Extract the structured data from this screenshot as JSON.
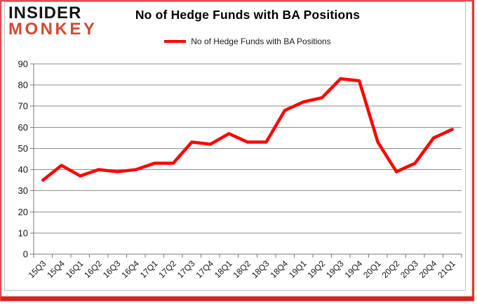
{
  "logo": {
    "line1": "INSIDER",
    "line2": "MONKEY"
  },
  "header": {
    "title": "No of Hedge Funds with BA Positions"
  },
  "legend": {
    "label": "No of Hedge Funds with BA Positions"
  },
  "chart_data": {
    "type": "line",
    "title": "No of Hedge Funds with BA Positions",
    "categories": [
      "15Q3",
      "15Q4",
      "16Q1",
      "16Q2",
      "16Q3",
      "16Q4",
      "17Q1",
      "17Q2",
      "17Q3",
      "17Q4",
      "18Q1",
      "18Q2",
      "18Q3",
      "18Q4",
      "19Q1",
      "19Q2",
      "19Q3",
      "19Q4",
      "20Q1",
      "20Q2",
      "20Q3",
      "20Q4",
      "21Q1"
    ],
    "series": [
      {
        "name": "No of Hedge Funds with BA Positions",
        "color": "#ff0000",
        "values": [
          35,
          42,
          37,
          40,
          39,
          40,
          43,
          43,
          53,
          52,
          57,
          53,
          53,
          68,
          72,
          74,
          83,
          82,
          53,
          39,
          43,
          55,
          59
        ]
      }
    ],
    "xlabel": "",
    "ylabel": "",
    "ylim": [
      0,
      90
    ],
    "yticks": [
      0,
      10,
      20,
      30,
      40,
      50,
      60,
      70,
      80,
      90
    ],
    "grid": true,
    "legend_position": "top-center"
  },
  "colors": {
    "line": "#ff0000",
    "grid": "#8e8e8e",
    "axis": "#7a7a7a",
    "logo_black": "#141414",
    "logo_red": "#d14a32",
    "frame_red": "#d62020",
    "inner_border": "#bfbfbf",
    "text": "#000000"
  }
}
